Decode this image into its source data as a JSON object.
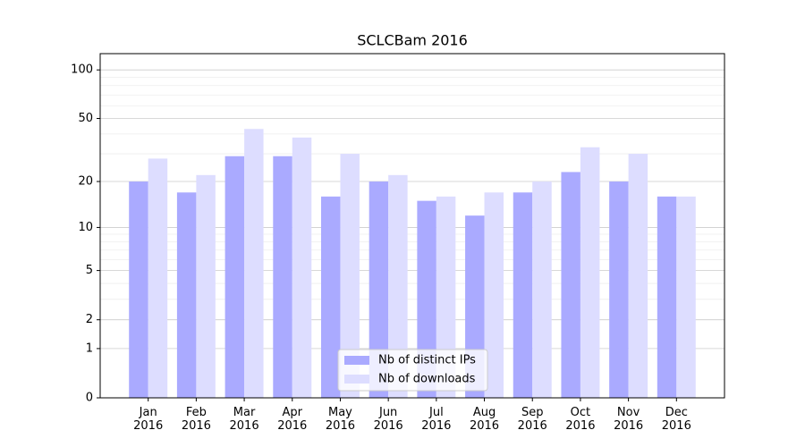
{
  "chart_data": {
    "type": "bar",
    "title": "SCLCBam 2016",
    "categories": [
      "Jan\n2016",
      "Feb\n2016",
      "Mar\n2016",
      "Apr\n2016",
      "May\n2016",
      "Jun\n2016",
      "Jul\n2016",
      "Aug\n2016",
      "Sep\n2016",
      "Oct\n2016",
      "Nov\n2016",
      "Dec\n2016"
    ],
    "series": [
      {
        "name": "Nb of distinct IPs",
        "color": "#aaaaff",
        "values": [
          20,
          17,
          29,
          29,
          16,
          20,
          15,
          12,
          17,
          23,
          20,
          16
        ]
      },
      {
        "name": "Nb of downloads",
        "color": "#ddddff",
        "values": [
          28,
          22,
          43,
          38,
          30,
          22,
          16,
          17,
          20,
          33,
          30,
          16
        ]
      }
    ],
    "yscale": "log1p",
    "ylim": [
      0,
      126
    ],
    "yticks": [
      0,
      1,
      2,
      5,
      10,
      20,
      50,
      100
    ],
    "minor_yticks": [
      3,
      4,
      6,
      7,
      8,
      9,
      30,
      40,
      60,
      70,
      80,
      90
    ],
    "grid": true,
    "legend": "lower center"
  }
}
